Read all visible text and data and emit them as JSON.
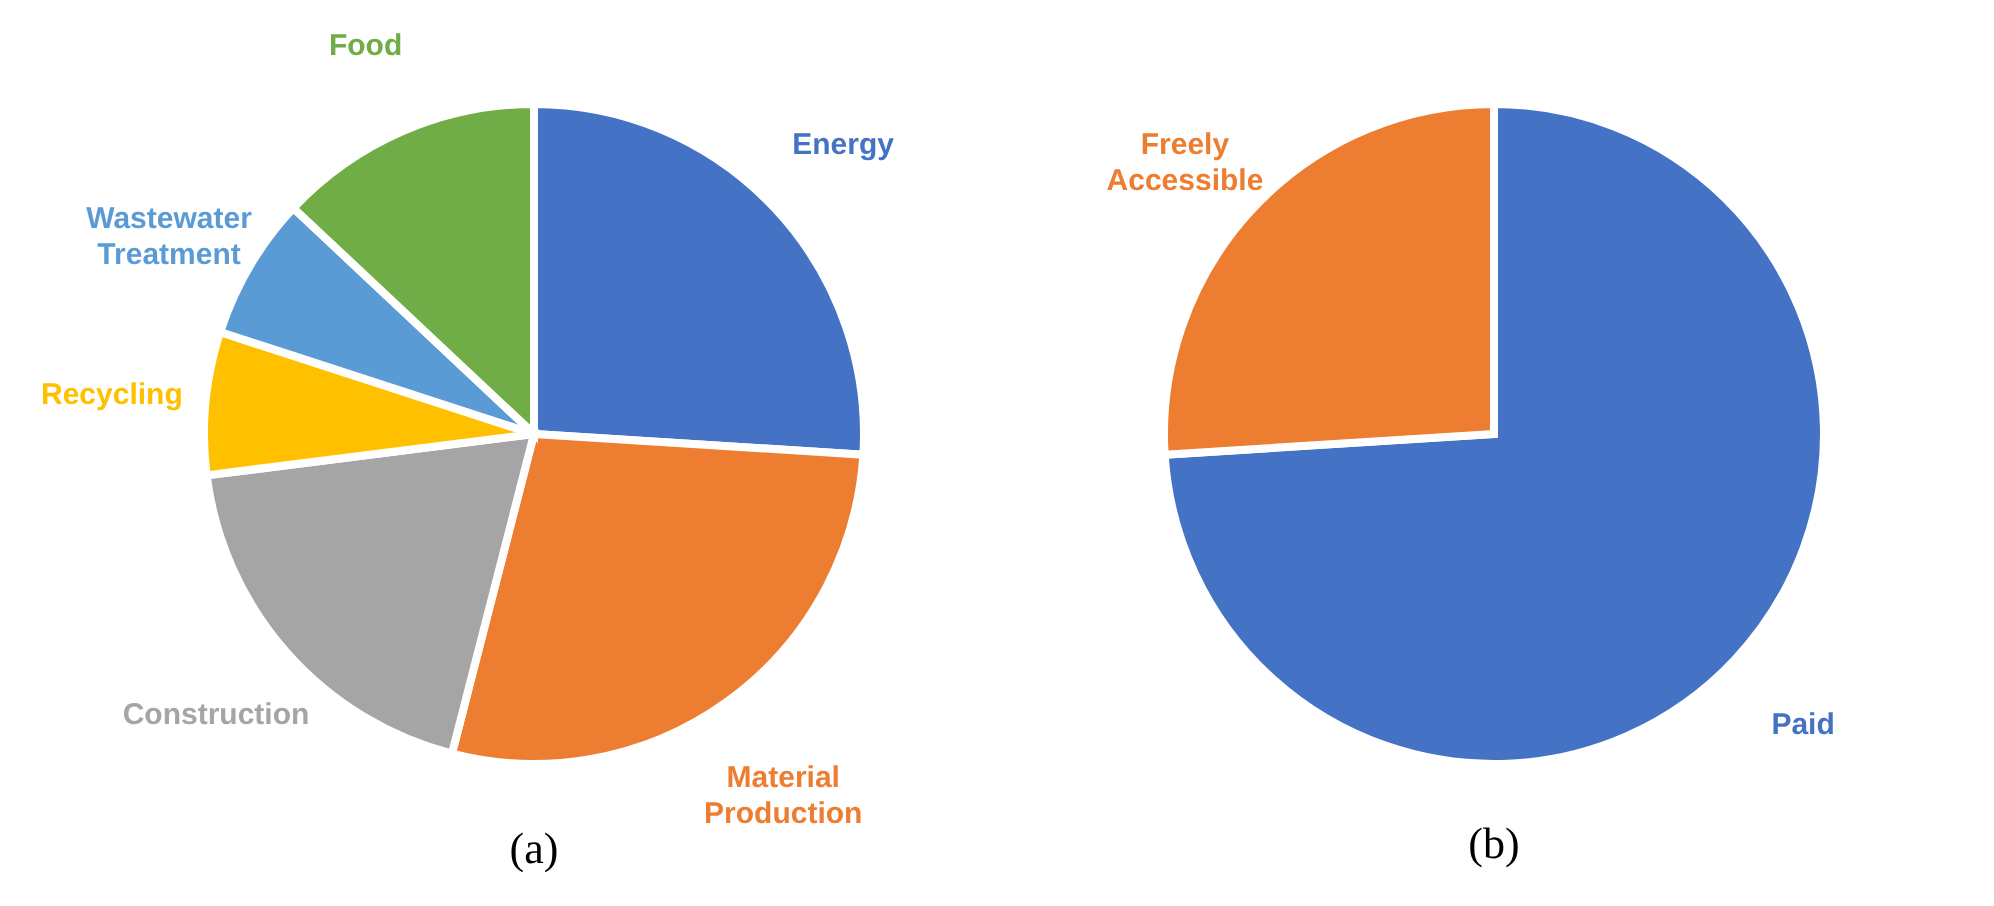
{
  "chart_data": [
    {
      "type": "pie",
      "title": "(a)",
      "categories": [
        "Energy",
        "Material Production",
        "Construction",
        "Recycling",
        "Wastewater Treatment",
        "Food"
      ],
      "values": [
        26,
        28,
        19,
        7,
        7,
        13
      ],
      "colors": [
        "#4472c4",
        "#ed7d31",
        "#a5a5a5",
        "#ffc000",
        "#5b9bd5",
        "#70ad47"
      ],
      "legend": false
    },
    {
      "type": "pie",
      "title": "(b)",
      "categories": [
        "Paid",
        "Freely Accessible"
      ],
      "values": [
        74,
        26
      ],
      "colors": [
        "#4472c4",
        "#ed7d31"
      ],
      "legend": false
    }
  ]
}
